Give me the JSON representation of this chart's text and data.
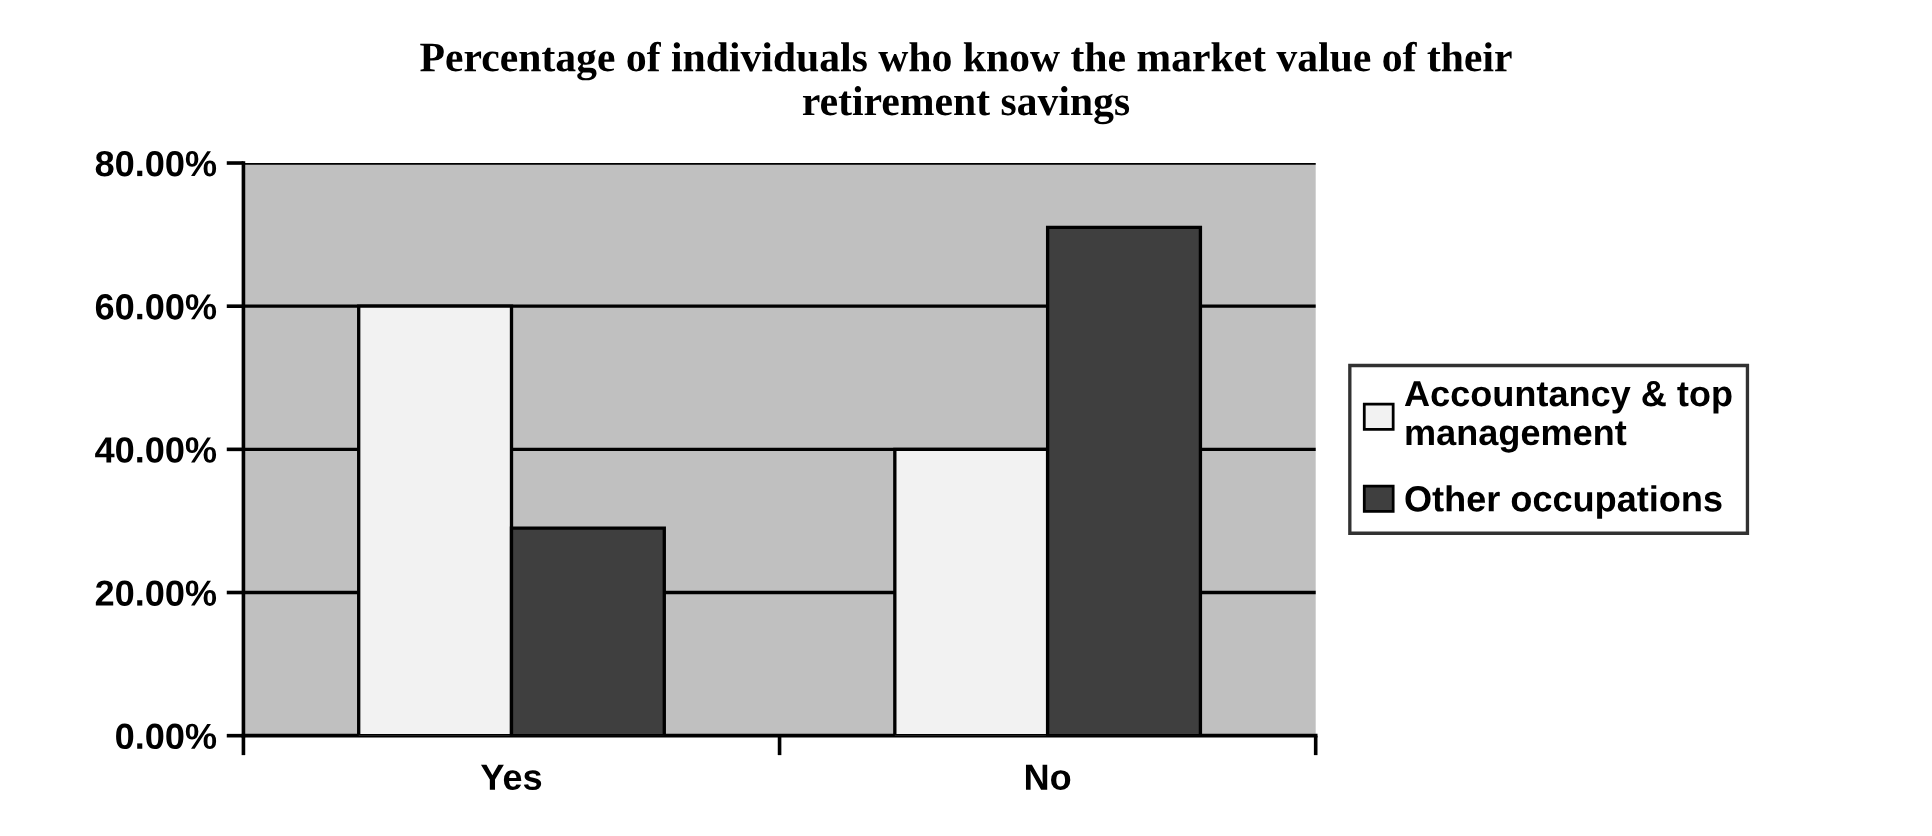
{
  "chart_data": {
    "type": "bar",
    "title": "Percentage of individuals who know the market value of their\nretirement savings",
    "categories": [
      "Yes",
      "No"
    ],
    "series": [
      {
        "name": "Accountancy & top\nmanagement",
        "color": "#f2f2f2",
        "values": [
          60,
          40
        ]
      },
      {
        "name": "Other occupations",
        "color": "#3f3f3f",
        "values": [
          29,
          71
        ]
      }
    ],
    "ylim": [
      0,
      80
    ],
    "yticks": [
      {
        "value": 0,
        "label": "0.00%"
      },
      {
        "value": 20,
        "label": "20.00%"
      },
      {
        "value": 40,
        "label": "40.00%"
      },
      {
        "value": 60,
        "label": "60.00%"
      },
      {
        "value": 80,
        "label": "80.00%"
      }
    ],
    "grid": "y",
    "legend": "right"
  }
}
